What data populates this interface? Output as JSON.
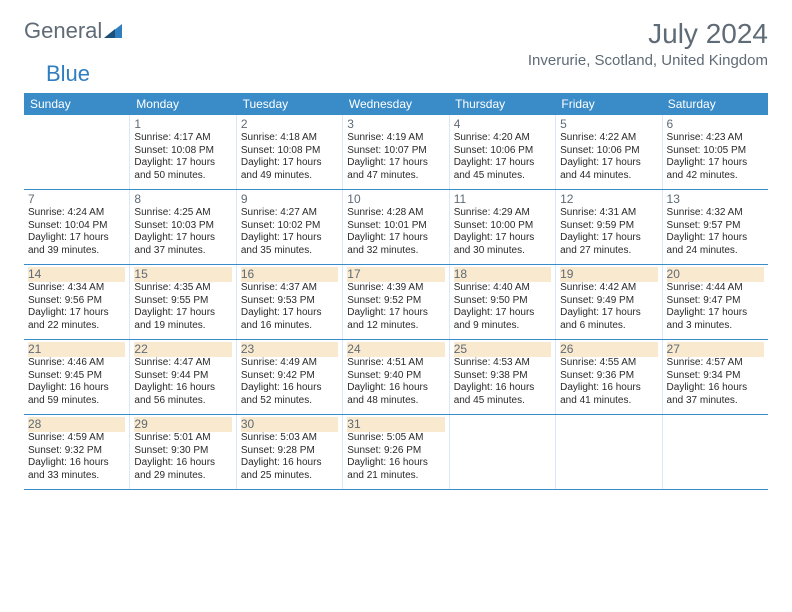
{
  "logo": {
    "text1": "General",
    "text2": "Blue"
  },
  "title": "July 2024",
  "location": "Inverurie, Scotland, United Kingdom",
  "dow": [
    "Sunday",
    "Monday",
    "Tuesday",
    "Wednesday",
    "Thursday",
    "Friday",
    "Saturday"
  ],
  "colors": {
    "header_bg": "#3a8cc8",
    "header_text": "#ffffff",
    "text_muted": "#5f6b76",
    "body_text": "#2a2a2a",
    "border": "#3a8cc8",
    "shade": "#f9e9ce"
  },
  "weeks": [
    [
      {
        "day": "",
        "lines": []
      },
      {
        "day": "1",
        "lines": [
          "Sunrise: 4:17 AM",
          "Sunset: 10:08 PM",
          "Daylight: 17 hours",
          "and 50 minutes."
        ]
      },
      {
        "day": "2",
        "lines": [
          "Sunrise: 4:18 AM",
          "Sunset: 10:08 PM",
          "Daylight: 17 hours",
          "and 49 minutes."
        ]
      },
      {
        "day": "3",
        "lines": [
          "Sunrise: 4:19 AM",
          "Sunset: 10:07 PM",
          "Daylight: 17 hours",
          "and 47 minutes."
        ]
      },
      {
        "day": "4",
        "lines": [
          "Sunrise: 4:20 AM",
          "Sunset: 10:06 PM",
          "Daylight: 17 hours",
          "and 45 minutes."
        ]
      },
      {
        "day": "5",
        "lines": [
          "Sunrise: 4:22 AM",
          "Sunset: 10:06 PM",
          "Daylight: 17 hours",
          "and 44 minutes."
        ]
      },
      {
        "day": "6",
        "lines": [
          "Sunrise: 4:23 AM",
          "Sunset: 10:05 PM",
          "Daylight: 17 hours",
          "and 42 minutes."
        ]
      }
    ],
    [
      {
        "day": "7",
        "lines": [
          "Sunrise: 4:24 AM",
          "Sunset: 10:04 PM",
          "Daylight: 17 hours",
          "and 39 minutes."
        ]
      },
      {
        "day": "8",
        "lines": [
          "Sunrise: 4:25 AM",
          "Sunset: 10:03 PM",
          "Daylight: 17 hours",
          "and 37 minutes."
        ]
      },
      {
        "day": "9",
        "lines": [
          "Sunrise: 4:27 AM",
          "Sunset: 10:02 PM",
          "Daylight: 17 hours",
          "and 35 minutes."
        ]
      },
      {
        "day": "10",
        "lines": [
          "Sunrise: 4:28 AM",
          "Sunset: 10:01 PM",
          "Daylight: 17 hours",
          "and 32 minutes."
        ]
      },
      {
        "day": "11",
        "lines": [
          "Sunrise: 4:29 AM",
          "Sunset: 10:00 PM",
          "Daylight: 17 hours",
          "and 30 minutes."
        ]
      },
      {
        "day": "12",
        "lines": [
          "Sunrise: 4:31 AM",
          "Sunset: 9:59 PM",
          "Daylight: 17 hours",
          "and 27 minutes."
        ]
      },
      {
        "day": "13",
        "lines": [
          "Sunrise: 4:32 AM",
          "Sunset: 9:57 PM",
          "Daylight: 17 hours",
          "and 24 minutes."
        ]
      }
    ],
    [
      {
        "day": "14",
        "lines": [
          "Sunrise: 4:34 AM",
          "Sunset: 9:56 PM",
          "Daylight: 17 hours",
          "and 22 minutes."
        ],
        "shade_num": true
      },
      {
        "day": "15",
        "lines": [
          "Sunrise: 4:35 AM",
          "Sunset: 9:55 PM",
          "Daylight: 17 hours",
          "and 19 minutes."
        ],
        "shade_num": true
      },
      {
        "day": "16",
        "lines": [
          "Sunrise: 4:37 AM",
          "Sunset: 9:53 PM",
          "Daylight: 17 hours",
          "and 16 minutes."
        ],
        "shade_num": true
      },
      {
        "day": "17",
        "lines": [
          "Sunrise: 4:39 AM",
          "Sunset: 9:52 PM",
          "Daylight: 17 hours",
          "and 12 minutes."
        ],
        "shade_num": true
      },
      {
        "day": "18",
        "lines": [
          "Sunrise: 4:40 AM",
          "Sunset: 9:50 PM",
          "Daylight: 17 hours",
          "and 9 minutes."
        ],
        "shade_num": true
      },
      {
        "day": "19",
        "lines": [
          "Sunrise: 4:42 AM",
          "Sunset: 9:49 PM",
          "Daylight: 17 hours",
          "and 6 minutes."
        ],
        "shade_num": true
      },
      {
        "day": "20",
        "lines": [
          "Sunrise: 4:44 AM",
          "Sunset: 9:47 PM",
          "Daylight: 17 hours",
          "and 3 minutes."
        ],
        "shade_num": true
      }
    ],
    [
      {
        "day": "21",
        "lines": [
          "Sunrise: 4:46 AM",
          "Sunset: 9:45 PM",
          "Daylight: 16 hours",
          "and 59 minutes."
        ],
        "shade_num": true
      },
      {
        "day": "22",
        "lines": [
          "Sunrise: 4:47 AM",
          "Sunset: 9:44 PM",
          "Daylight: 16 hours",
          "and 56 minutes."
        ],
        "shade_num": true
      },
      {
        "day": "23",
        "lines": [
          "Sunrise: 4:49 AM",
          "Sunset: 9:42 PM",
          "Daylight: 16 hours",
          "and 52 minutes."
        ],
        "shade_num": true
      },
      {
        "day": "24",
        "lines": [
          "Sunrise: 4:51 AM",
          "Sunset: 9:40 PM",
          "Daylight: 16 hours",
          "and 48 minutes."
        ],
        "shade_num": true
      },
      {
        "day": "25",
        "lines": [
          "Sunrise: 4:53 AM",
          "Sunset: 9:38 PM",
          "Daylight: 16 hours",
          "and 45 minutes."
        ],
        "shade_num": true
      },
      {
        "day": "26",
        "lines": [
          "Sunrise: 4:55 AM",
          "Sunset: 9:36 PM",
          "Daylight: 16 hours",
          "and 41 minutes."
        ],
        "shade_num": true
      },
      {
        "day": "27",
        "lines": [
          "Sunrise: 4:57 AM",
          "Sunset: 9:34 PM",
          "Daylight: 16 hours",
          "and 37 minutes."
        ],
        "shade_num": true
      }
    ],
    [
      {
        "day": "28",
        "lines": [
          "Sunrise: 4:59 AM",
          "Sunset: 9:32 PM",
          "Daylight: 16 hours",
          "and 33 minutes."
        ],
        "shade_num": true
      },
      {
        "day": "29",
        "lines": [
          "Sunrise: 5:01 AM",
          "Sunset: 9:30 PM",
          "Daylight: 16 hours",
          "and 29 minutes."
        ],
        "shade_num": true
      },
      {
        "day": "30",
        "lines": [
          "Sunrise: 5:03 AM",
          "Sunset: 9:28 PM",
          "Daylight: 16 hours",
          "and 25 minutes."
        ],
        "shade_num": true
      },
      {
        "day": "31",
        "lines": [
          "Sunrise: 5:05 AM",
          "Sunset: 9:26 PM",
          "Daylight: 16 hours",
          "and 21 minutes."
        ],
        "shade_num": true
      },
      {
        "day": "",
        "lines": []
      },
      {
        "day": "",
        "lines": []
      },
      {
        "day": "",
        "lines": []
      }
    ]
  ]
}
